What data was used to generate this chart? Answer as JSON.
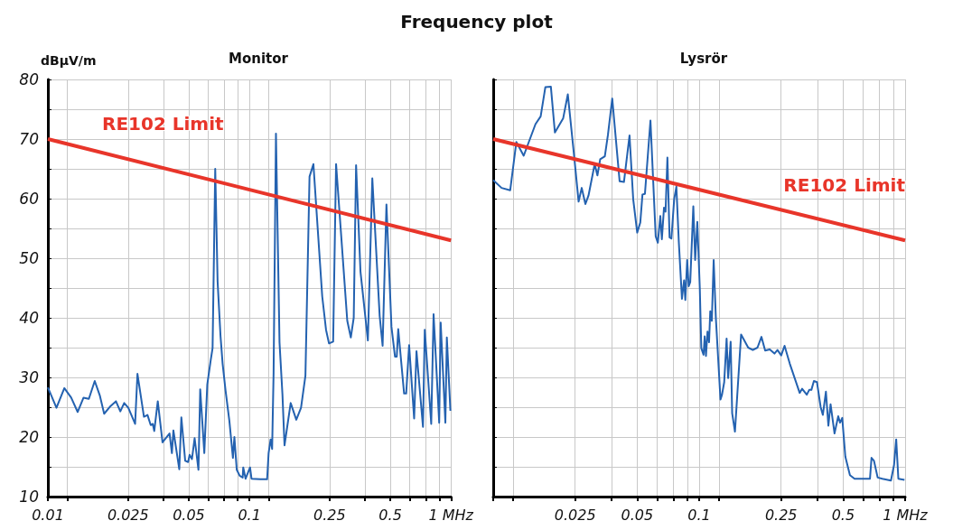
{
  "chart_data": [
    {
      "type": "line",
      "title": "Frequency plot",
      "subtitle": "Monitor",
      "ylabel": "dBμV/m",
      "log": "x",
      "grid": true,
      "legend": false,
      "xlim": [
        0.01,
        1
      ],
      "xticks": [
        0.01,
        {
          "value": 0.0125,
          "label": null
        },
        0.025,
        {
          "value": 0.0375,
          "label": null
        },
        0.05,
        {
          "value": 0.0625,
          "label": null
        },
        {
          "value": 0.075,
          "label": null
        },
        {
          "value": 0.0875,
          "label": null
        },
        0.1,
        {
          "value": 0.125,
          "label": null
        },
        0.25,
        {
          "value": 0.375,
          "label": null
        },
        0.5,
        {
          "value": 0.625,
          "label": null
        },
        {
          "value": 0.75,
          "label": null
        },
        {
          "value": 0.875,
          "label": null
        },
        {
          "value": 1,
          "label": "1 MHz"
        }
      ],
      "ylim": [
        10,
        80
      ],
      "yticks": [
        10,
        {
          "value": 15,
          "label": null
        },
        20,
        {
          "value": 25,
          "label": null
        },
        30,
        {
          "value": 35,
          "label": null
        },
        40,
        {
          "value": 45,
          "label": null
        },
        50,
        {
          "value": 55,
          "label": null
        },
        60,
        {
          "value": 65,
          "label": null
        },
        70,
        {
          "value": 75,
          "label": null
        },
        80
      ],
      "series": [
        {
          "color": "#2462b0",
          "x": [
            0.01,
            0.01103,
            0.01207,
            0.01305,
            0.01405,
            0.01503,
            0.01597,
            0.01708,
            0.01809,
            0.01902,
            0.02048,
            0.02176,
            0.02288,
            0.02391,
            0.02506,
            0.02709,
            0.02783,
            0.02997,
            0.03121,
            0.03237,
            0.03315,
            0.03371,
            0.0351,
            0.03705,
            0.04015,
            0.04125,
            0.04195,
            0.04487,
            0.04595,
            0.04801,
            0.04965,
            0.05049,
            0.05187,
            0.05347,
            0.05586,
            0.05699,
            0.05973,
            0.06178,
            0.06433,
            0.06564,
            0.06766,
            0.06951,
            0.07189,
            0.07362,
            0.07614,
            0.07952,
            0.08281,
            0.08421,
            0.08651,
            0.08948,
            0.09255,
            0.09317,
            0.09572,
            0.1007,
            0.1024,
            0.1133,
            0.1224,
            0.1245,
            0.1274,
            0.1296,
            0.1318,
            0.1354,
            0.141,
            0.1458,
            0.1493,
            0.1602,
            0.1708,
            0.1803,
            0.1896,
            0.1987,
            0.2077,
            0.2297,
            0.2399,
            0.2482,
            0.2602,
            0.2691,
            0.3058,
            0.3184,
            0.3292,
            0.3382,
            0.3557,
            0.387,
            0.4071,
            0.4428,
            0.4579,
            0.4784,
            0.5066,
            0.5275,
            0.5383,
            0.5474,
            0.5853,
            0.5994,
            0.6199,
            0.6565,
            0.6743,
            0.7262,
            0.7411,
            0.798,
            0.8197,
            0.8741,
            0.8889,
            0.938,
            0.9539,
            0.9933
          ],
          "values": [
            28.3,
            24.9,
            28.2,
            26.6,
            24.2,
            26.6,
            26.4,
            29.4,
            27,
            23.9,
            25.2,
            26,
            24.3,
            25.7,
            24.9,
            22.2,
            30.6,
            23.4,
            23.7,
            22,
            22.2,
            21,
            26,
            19.1,
            20.6,
            17.3,
            21.1,
            14.6,
            23.3,
            16,
            15.8,
            17,
            16.3,
            19.8,
            14.5,
            28,
            17.3,
            28.8,
            33,
            34.9,
            65,
            46.1,
            36.9,
            32.3,
            27.8,
            22.7,
            16.5,
            20,
            14.5,
            13.5,
            13.2,
            14.9,
            13,
            14.9,
            13,
            12.9,
            12.9,
            17.3,
            19.6,
            18,
            30.8,
            70.9,
            35.9,
            27.2,
            18.6,
            25.7,
            22.9,
            24.9,
            30.3,
            63.7,
            65.8,
            43.6,
            38,
            35.7,
            36,
            65.8,
            39.5,
            36.7,
            40,
            65.6,
            47.7,
            36.2,
            63.4,
            40.3,
            35.3,
            59,
            38.5,
            33.5,
            33.5,
            38.1,
            27.3,
            27.3,
            35.4,
            23.1,
            34.4,
            21.7,
            38,
            22.2,
            40.6,
            22.4,
            39.2,
            22.4,
            36.7,
            24.4
          ]
        },
        {
          "name": "RE102 Limit",
          "color": "#e8352a",
          "x": [
            0.01,
            1
          ],
          "values": [
            70,
            53
          ]
        }
      ]
    },
    {
      "type": "line",
      "subtitle": "Lysrör",
      "log": "x",
      "grid": true,
      "legend": false,
      "tick_labels": "x",
      "xlim": [
        0.01,
        1
      ],
      "xticks": [
        {
          "value": 0.01,
          "label": null
        },
        {
          "value": 0.0125,
          "label": null
        },
        0.025,
        {
          "value": 0.0375,
          "label": null
        },
        0.05,
        {
          "value": 0.0625,
          "label": null
        },
        {
          "value": 0.075,
          "label": null
        },
        {
          "value": 0.0875,
          "label": null
        },
        0.1,
        {
          "value": 0.125,
          "label": null
        },
        0.25,
        {
          "value": 0.375,
          "label": null
        },
        0.5,
        {
          "value": 0.625,
          "label": null
        },
        {
          "value": 0.75,
          "label": null
        },
        {
          "value": 0.875,
          "label": null
        },
        {
          "value": 1,
          "label": "1 MHz"
        }
      ],
      "ylim": [
        10,
        80
      ],
      "yticks": [
        10,
        {
          "value": 15,
          "label": null
        },
        20,
        {
          "value": 25,
          "label": null
        },
        30,
        {
          "value": 35,
          "label": null
        },
        40,
        {
          "value": 45,
          "label": null
        },
        50,
        {
          "value": 55,
          "label": null
        },
        60,
        {
          "value": 65,
          "label": null
        },
        70,
        {
          "value": 75,
          "label": null
        },
        80
      ],
      "series": [
        {
          "color": "#2462b0",
          "x": [
            0.01,
            0.01098,
            0.01209,
            0.01295,
            0.01406,
            0.01604,
            0.017,
            0.01791,
            0.01905,
            0.01993,
            0.02187,
            0.02303,
            0.02467,
            0.02598,
            0.0269,
            0.02803,
            0.02901,
            0.03109,
            0.03206,
            0.03307,
            0.03483,
            0.03606,
            0.03784,
            0.0411,
            0.04313,
            0.0459,
            0.04783,
            0.05002,
            0.05178,
            0.05305,
            0.05453,
            0.05801,
            0.0615,
            0.063,
            0.06477,
            0.0659,
            0.0675,
            0.06867,
            0.07011,
            0.07182,
            0.07332,
            0.07562,
            0.0775,
            0.07966,
            0.08248,
            0.08449,
            0.08566,
            0.08745,
            0.08898,
            0.09049,
            0.09367,
            0.09561,
            0.09795,
            0.1007,
            0.1024,
            0.105,
            0.1064,
            0.1079,
            0.1098,
            0.1117,
            0.1132,
            0.1152,
            0.1176,
            0.1205,
            0.1269,
            0.1291,
            0.1323,
            0.1359,
            0.1383,
            0.1422,
            0.1446,
            0.1492,
            0.1598,
            0.173,
            0.1822,
            0.1919,
            0.2006,
            0.2091,
            0.2202,
            0.232,
            0.24,
            0.2502,
            0.2598,
            0.2755,
            0.3076,
            0.3162,
            0.3331,
            0.3422,
            0.3506,
            0.3606,
            0.3733,
            0.389,
            0.3985,
            0.4125,
            0.424,
            0.4345,
            0.4542,
            0.4734,
            0.4833,
            0.4951,
            0.5125,
            0.5395,
            0.5681,
            0.6087,
            0.641,
            0.675,
            0.6868,
            0.706,
            0.7356,
            0.775,
            0.8533,
            0.8835,
            0.905,
            0.9271,
            0.9931
          ],
          "values": [
            63.1,
            61.8,
            61.4,
            69.5,
            67.2,
            72.5,
            73.8,
            78.7,
            78.8,
            71.1,
            73.5,
            77.5,
            67.4,
            59.5,
            61.8,
            59.1,
            60.5,
            65.8,
            63.9,
            66.6,
            67.1,
            70.7,
            76.8,
            62.9,
            62.8,
            70.6,
            59.9,
            54.3,
            56,
            60.7,
            60.8,
            73.1,
            53.7,
            52.6,
            57.1,
            53.2,
            58.5,
            57.8,
            66.9,
            53.5,
            53.3,
            59.9,
            62,
            52.7,
            43.2,
            46.3,
            43,
            49.7,
            45.3,
            46,
            58.7,
            49.7,
            56.1,
            45,
            34.9,
            33.8,
            36.9,
            33.6,
            37.7,
            35.9,
            41.1,
            39.5,
            49.7,
            40,
            26.3,
            27.1,
            29.2,
            36.5,
            29.9,
            36,
            24,
            20.9,
            37.2,
            35,
            34.6,
            35,
            36.8,
            34.5,
            34.7,
            34,
            34.6,
            33.7,
            35.3,
            32.3,
            27.4,
            28.1,
            27.1,
            27.9,
            27.9,
            29.4,
            29.2,
            25,
            23.7,
            27.6,
            21.9,
            25.5,
            20.6,
            23.5,
            22.4,
            23.2,
            16.7,
            13.6,
            13,
            13,
            13,
            13,
            16.5,
            16,
            13.2,
            13,
            12.7,
            15.3,
            19.6,
            13,
            12.8
          ]
        },
        {
          "name": "RE102 Limit",
          "color": "#e8352a",
          "x": [
            0.01,
            1
          ],
          "values": [
            70,
            53
          ]
        }
      ]
    }
  ]
}
